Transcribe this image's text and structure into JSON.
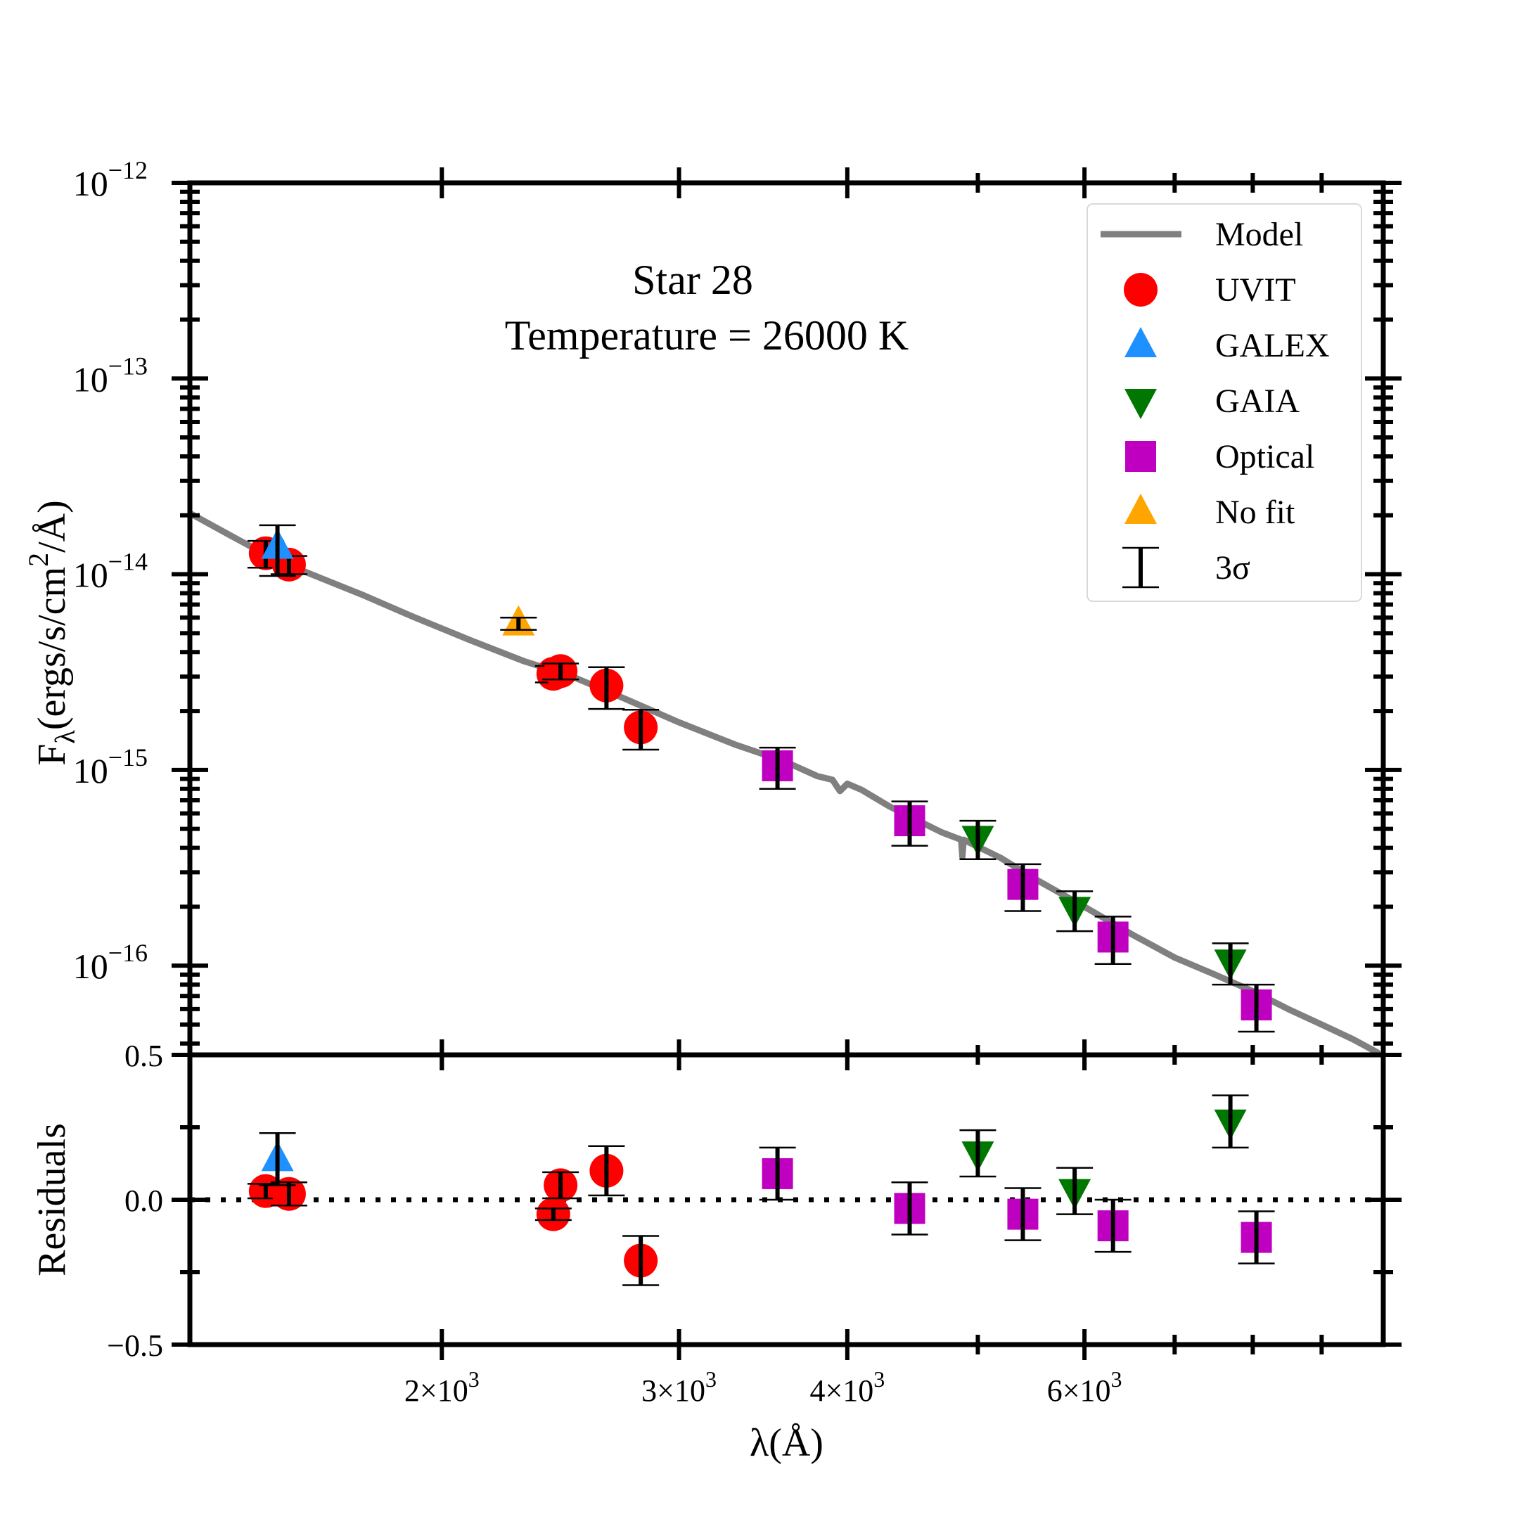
{
  "chart_data": {
    "type": "scatter",
    "title": "Star 28",
    "subtitle": "Temperature = 26000 K",
    "xlabel": "λ(Å)",
    "xscale": "log",
    "xlim": [
      1300,
      10000
    ],
    "x_ticks": [
      {
        "value": 2000,
        "mant": "2",
        "exp": "3"
      },
      {
        "value": 3000,
        "mant": "3",
        "exp": "3"
      },
      {
        "value": 4000,
        "mant": "4",
        "exp": "3"
      },
      {
        "value": 6000,
        "mant": "6",
        "exp": "3"
      }
    ],
    "top_panel": {
      "ylabel_main": "F",
      "ylabel_sub": "λ",
      "ylabel_rest": "(ergs/s/cm",
      "ylabel_sup": "2",
      "ylabel_end": "/Å)",
      "yscale": "log",
      "ylim": [
        3.5e-17,
        1e-12
      ],
      "y_ticks": [
        {
          "value": 1e-12,
          "base": "10",
          "exp": "−12"
        },
        {
          "value": 1e-13,
          "base": "10",
          "exp": "−13"
        },
        {
          "value": 1e-14,
          "base": "10",
          "exp": "−14"
        },
        {
          "value": 1e-15,
          "base": "10",
          "exp": "−15"
        },
        {
          "value": 1e-16,
          "base": "10",
          "exp": "−16"
        }
      ],
      "model": [
        [
          1300,
          2.05e-14
        ],
        [
          1400,
          1.55e-14
        ],
        [
          1500,
          1.2e-14
        ],
        [
          1600,
          1e-14
        ],
        [
          1750,
          7.8e-15
        ],
        [
          1900,
          6.1e-15
        ],
        [
          2100,
          4.6e-15
        ],
        [
          2300,
          3.6e-15
        ],
        [
          2500,
          3e-15
        ],
        [
          2700,
          2.4e-15
        ],
        [
          3000,
          1.75e-15
        ],
        [
          3300,
          1.35e-15
        ],
        [
          3600,
          1.1e-15
        ],
        [
          3800,
          9.3e-16
        ],
        [
          3900,
          8.9e-16
        ],
        [
          3950,
          7.8e-16
        ],
        [
          4000,
          8.5e-16
        ],
        [
          4100,
          7.9e-16
        ],
        [
          4300,
          6.5e-16
        ],
        [
          4700,
          4.8e-16
        ],
        [
          4860,
          4.4e-16
        ],
        [
          4870,
          3.6e-16
        ],
        [
          4880,
          4.4e-16
        ],
        [
          5200,
          3.55e-16
        ],
        [
          5500,
          2.8e-16
        ],
        [
          6000,
          2e-16
        ],
        [
          6500,
          1.45e-16
        ],
        [
          7000,
          1.1e-16
        ],
        [
          7500,
          9e-17
        ],
        [
          8000,
          7.4e-17
        ],
        [
          8500,
          6e-17
        ],
        [
          9000,
          5e-17
        ],
        [
          9500,
          4.2e-17
        ],
        [
          9900,
          3.6e-17
        ]
      ]
    },
    "bottom_panel": {
      "ylabel": "Residuals",
      "ylim": [
        -0.5,
        0.5
      ],
      "y_ticks": [
        {
          "value": 0.5,
          "label": "0.5"
        },
        {
          "value": 0.0,
          "label": "0.0"
        },
        {
          "value": -0.5,
          "label": "−0.5"
        }
      ],
      "zero_line": 0
    },
    "series": [
      {
        "name": "UVIT",
        "marker": "circle",
        "color": "#ff0000",
        "points": [
          {
            "x": 1480,
            "y": 1.28e-14,
            "err": 2e-15,
            "res": 0.03,
            "res_err": 0.025
          },
          {
            "x": 1540,
            "y": 1.12e-14,
            "err": 1.2e-15,
            "res": 0.02,
            "res_err": 0.04
          },
          {
            "x": 2420,
            "y": 3.1e-15,
            "err": 3e-16,
            "res": -0.05,
            "res_err": 0.02
          },
          {
            "x": 2450,
            "y": 3.2e-15,
            "err": 3e-16,
            "res": 0.05,
            "res_err": 0.045
          },
          {
            "x": 2650,
            "y": 2.7e-15,
            "err": 6.5e-16,
            "res": 0.1,
            "res_err": 0.085
          },
          {
            "x": 2810,
            "y": 1.65e-15,
            "err": 3.8e-16,
            "res": -0.21,
            "res_err": 0.085
          }
        ]
      },
      {
        "name": "GALEX",
        "marker": "triangle-up",
        "color": "#1e90ff",
        "points": [
          {
            "x": 1510,
            "y": 1.38e-14,
            "err": 4e-15,
            "res": 0.14,
            "res_err": 0.09
          }
        ]
      },
      {
        "name": "GAIA",
        "marker": "triangle-down",
        "color": "#007700",
        "points": [
          {
            "x": 5000,
            "y": 4.5e-16,
            "err": 1e-16,
            "res": 0.16,
            "res_err": 0.08
          },
          {
            "x": 5900,
            "y": 1.95e-16,
            "err": 4.5e-17,
            "res": 0.03,
            "res_err": 0.08
          },
          {
            "x": 7700,
            "y": 1.05e-16,
            "err": 2.5e-17,
            "res": 0.27,
            "res_err": 0.09
          }
        ]
      },
      {
        "name": "Optical",
        "marker": "square",
        "color": "#c000c0",
        "points": [
          {
            "x": 3550,
            "y": 1.05e-15,
            "err": 2.5e-16,
            "res": 0.09,
            "res_err": 0.09
          },
          {
            "x": 4450,
            "y": 5.5e-16,
            "err": 1.4e-16,
            "res": -0.03,
            "res_err": 0.09
          },
          {
            "x": 5400,
            "y": 2.6e-16,
            "err": 7e-17,
            "res": -0.05,
            "res_err": 0.09
          },
          {
            "x": 6300,
            "y": 1.4e-16,
            "err": 3.8e-17,
            "res": -0.09,
            "res_err": 0.09
          },
          {
            "x": 8050,
            "y": 6.3e-17,
            "err": 1.7e-17,
            "res": -0.13,
            "res_err": 0.09
          }
        ]
      },
      {
        "name": "No fit",
        "marker": "triangle-up",
        "color": "#ffa500",
        "points": [
          {
            "x": 2280,
            "y": 5.6e-15,
            "err": 4e-16
          }
        ]
      }
    ],
    "legend": {
      "position": "top-right",
      "entries": [
        {
          "label": "Model",
          "kind": "line",
          "color": "#808080"
        },
        {
          "label": "UVIT",
          "kind": "circle",
          "color": "#ff0000"
        },
        {
          "label": "GALEX",
          "kind": "triangle-up",
          "color": "#1e90ff"
        },
        {
          "label": "GAIA",
          "kind": "triangle-down",
          "color": "#007700"
        },
        {
          "label": "Optical",
          "kind": "square",
          "color": "#c000c0"
        },
        {
          "label": "No fit",
          "kind": "triangle-up",
          "color": "#ffa500"
        },
        {
          "label": "3σ",
          "kind": "errorbar",
          "color": "#000000"
        }
      ]
    }
  }
}
